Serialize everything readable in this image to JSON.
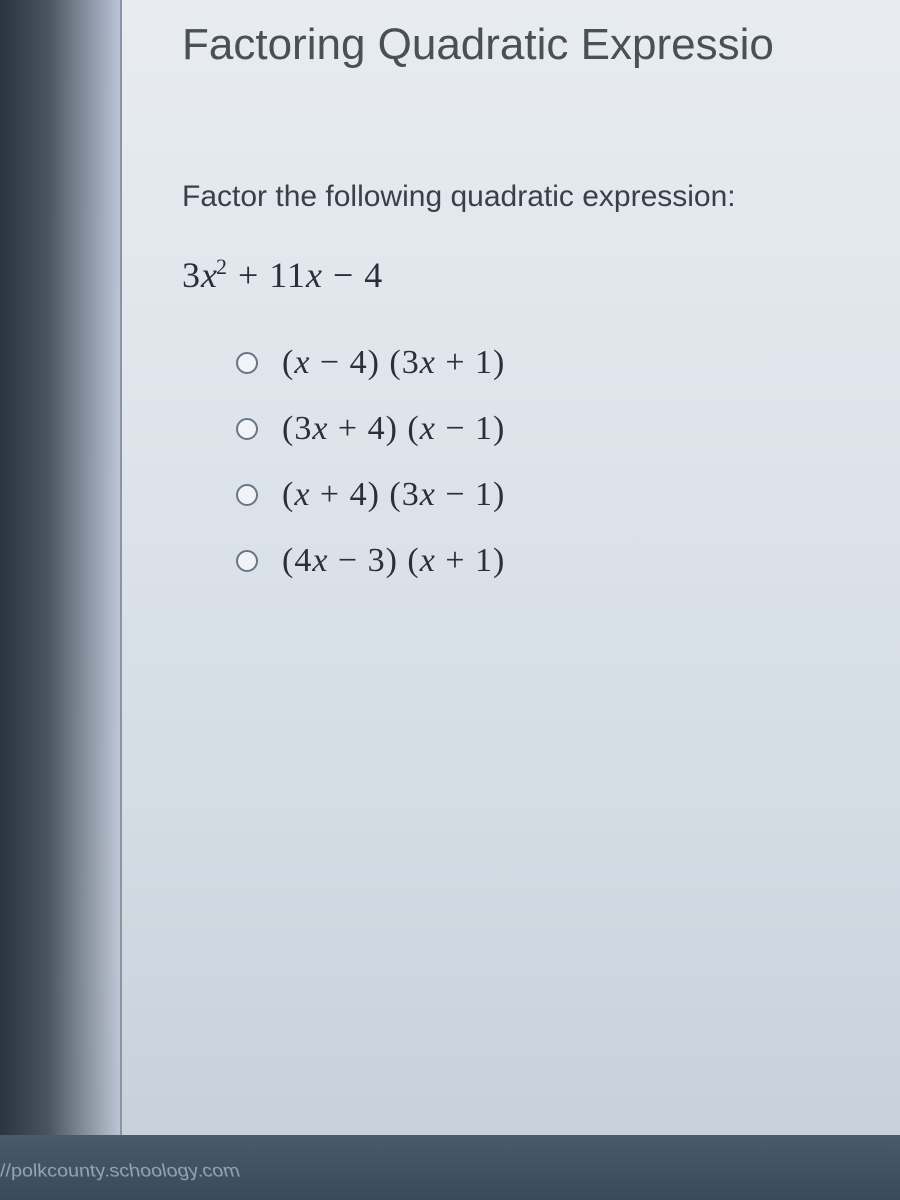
{
  "page": {
    "title": "Factoring Quadratic Expressio",
    "question_prompt": "Factor the following quadratic expression:",
    "expression_html": "3<span class='var'>x</span><sup>2</sup> + 11<span class='var'>x</span> − 4"
  },
  "options": [
    {
      "label_html": "(<span class='var'>x</span> − 4) (3<span class='var'>x</span> + 1)"
    },
    {
      "label_html": "(3<span class='var'>x</span> + 4) (<span class='var'>x</span> − 1)"
    },
    {
      "label_html": "(<span class='var'>x</span> + 4) (3<span class='var'>x</span> − 1)"
    },
    {
      "label_html": "(4<span class='var'>x</span> − 3) (<span class='var'>x</span> + 1)"
    }
  ],
  "footer": {
    "url_fragment": "//polkcounty.schoology.com"
  },
  "styling": {
    "background_gradient": [
      "#b8c4d8",
      "#c0c8d6",
      "#a8b4c4"
    ],
    "panel_gradient": [
      "#e8ecf0",
      "#e0e6ec",
      "#d4dce4",
      "#c8d0da"
    ],
    "title_color": "#4a5058",
    "text_color": "#3a4048",
    "math_color": "#2a3038",
    "radio_border": "#6a7484",
    "bottom_bar_gradient": [
      "#4a5a6a",
      "#3a4a5a"
    ],
    "title_fontsize": 44,
    "question_fontsize": 30,
    "expression_fontsize": 36,
    "option_fontsize": 34
  }
}
